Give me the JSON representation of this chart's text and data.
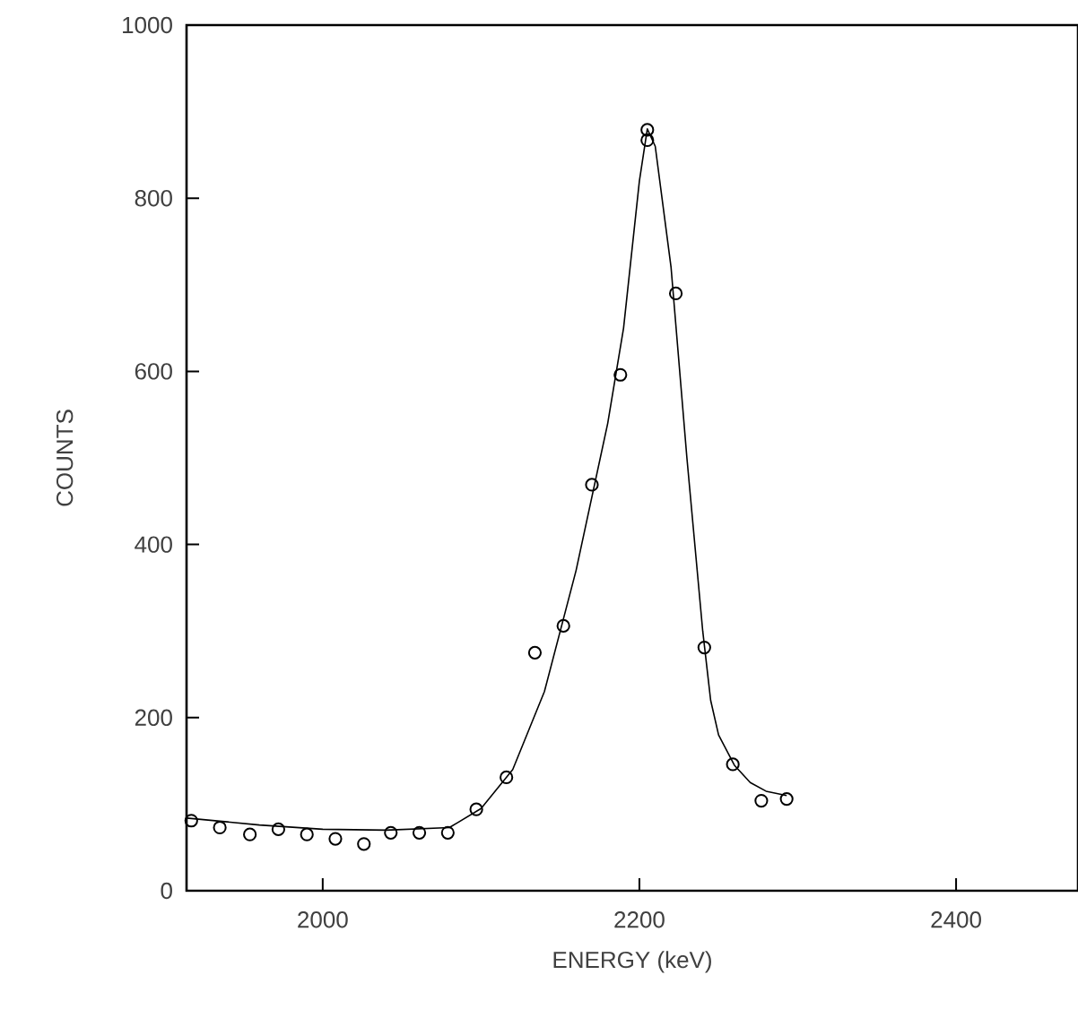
{
  "chart_data": {
    "type": "scatter",
    "xlabel": "ENERGY (keV)",
    "ylabel": "COUNTS",
    "xlim": [
      1914,
      2477
    ],
    "ylim": [
      0,
      1000
    ],
    "xticks": [
      2000,
      2200,
      2400
    ],
    "yticks": [
      0,
      200,
      400,
      600,
      800,
      1000
    ],
    "grid": false,
    "series": [
      {
        "marker": "circle",
        "color": "#000000",
        "x": [
          1917,
          1935,
          1954,
          1972,
          1990,
          2008,
          2026,
          2043,
          2061,
          2079,
          2097,
          2116,
          2134,
          2152,
          2170,
          2188,
          2205,
          2205,
          2223,
          2241,
          2259,
          2277,
          2293
        ],
        "values": [
          81,
          73,
          65,
          71,
          65,
          60,
          54,
          67,
          67,
          67,
          94,
          131,
          275,
          306,
          469,
          596,
          879,
          867,
          690,
          281,
          146,
          104,
          106
        ]
      },
      {
        "type": "line",
        "marker": "none",
        "line_style": "solid",
        "color": "#000000",
        "x": [
          1914,
          1960,
          2000,
          2040,
          2080,
          2100,
          2120,
          2140,
          2160,
          2180,
          2190,
          2200,
          2205,
          2210,
          2220,
          2230,
          2240,
          2245,
          2250,
          2260,
          2270,
          2280,
          2293
        ],
        "values": [
          84,
          76,
          71,
          70,
          73,
          95,
          140,
          230,
          370,
          540,
          650,
          820,
          880,
          860,
          720,
          500,
          300,
          220,
          180,
          145,
          125,
          115,
          110
        ]
      }
    ]
  }
}
